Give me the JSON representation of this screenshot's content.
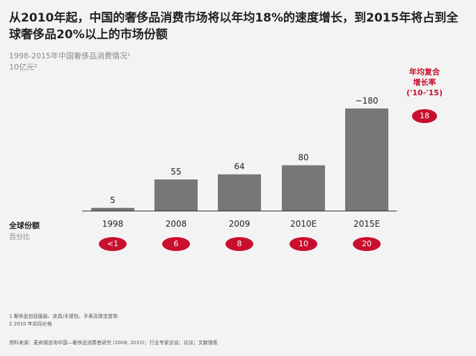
{
  "title": "从2010年起，中国的奢侈品消费市场将以年均18%的速度增长，到2015年将占到全球奢侈品20%以上的市场份额",
  "subtitle": "1998-2015年中国奢侈品消费情况¹",
  "unit": "10亿元²",
  "cagr": {
    "label1": "年均复合",
    "label2": "增长率",
    "label3": "('10-'15)",
    "value": "18"
  },
  "share": {
    "label": "全球份额",
    "unit": "百分比",
    "values": [
      "<1",
      "6",
      "8",
      "10",
      "20"
    ]
  },
  "colors": {
    "bar": "#787676",
    "accent": "#c8102e"
  },
  "chart_data": {
    "type": "bar",
    "categories": [
      "1998",
      "2008",
      "2009",
      "2010E",
      "2015E"
    ],
    "values": [
      5,
      55,
      64,
      80,
      180
    ],
    "data_labels": [
      "5",
      "55",
      "64",
      "80",
      "~180"
    ]
  },
  "footnotes": [
    "1 奢侈品包括服装、皮具/手提包、手表及珠宝首饰",
    "2 2010 年实际价格"
  ],
  "source": "资料来源：麦肯锡咨询中国—奢侈品消费者研究 (2008, 2010)；行业专家访谈；访谈；文献搜索"
}
